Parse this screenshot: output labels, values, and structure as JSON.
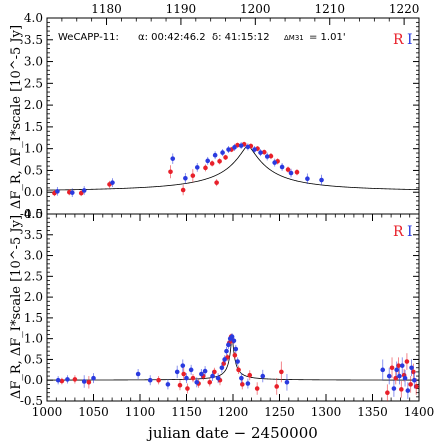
{
  "chart_data": [
    {
      "type": "scatter",
      "panel": "top",
      "xlim": [
        1172,
        1222
      ],
      "ylim": [
        -0.5,
        4.0
      ],
      "x_top_ticks": [
        1180,
        1190,
        1200,
        1210,
        1220
      ],
      "y_ticks": [
        "-0.5",
        "0.0",
        "0.5",
        "1.0",
        "1.5",
        "2.0",
        "2.5",
        "3.0",
        "3.5",
        "4.0"
      ],
      "ylabel": "ΔF_R, ΔF_I*scale [10^-5 Jy]",
      "info": {
        "name": "WeCAPP-11:",
        "alpha": "α: 00:42:46.2",
        "delta": "δ: 41:15:12",
        "dist_label": "ΔM31",
        "dist_value": "= 1.01'"
      },
      "legend": {
        "r": "R",
        "i": "I",
        "position": "top-right"
      },
      "series": [
        {
          "name": "R",
          "color": "#e8202a",
          "points": [
            [
              1173.0,
              -0.02
            ],
            [
              1175.0,
              0.0
            ],
            [
              1176.6,
              -0.02
            ],
            [
              1180.4,
              0.18
            ],
            [
              1188.6,
              0.47
            ],
            [
              1191.6,
              0.38
            ],
            [
              1193.3,
              0.56
            ],
            [
              1194.2,
              0.66
            ],
            [
              1195.2,
              0.71
            ],
            [
              1196.0,
              0.8
            ],
            [
              1196.8,
              0.98
            ],
            [
              1197.6,
              1.08
            ],
            [
              1198.5,
              1.1
            ],
            [
              1199.4,
              1.06
            ],
            [
              1200.3,
              1.0
            ],
            [
              1201.2,
              0.92
            ],
            [
              1202.1,
              0.83
            ],
            [
              1203.0,
              0.71
            ],
            [
              1204.4,
              0.52
            ],
            [
              1205.6,
              0.46
            ],
            [
              1190.3,
              0.05
            ],
            [
              1194.8,
              0.22
            ]
          ],
          "err": [
            0.07,
            0.07,
            0.07,
            0.08,
            0.15,
            0.15,
            0.08,
            0.07,
            0.07,
            0.06,
            0.06,
            0.06,
            0.06,
            0.06,
            0.06,
            0.06,
            0.07,
            0.07,
            0.07,
            0.07,
            0.12,
            0.08
          ]
        },
        {
          "name": "I",
          "color": "#2a3adf",
          "points": [
            [
              1173.4,
              0.02
            ],
            [
              1175.4,
              -0.01
            ],
            [
              1177.0,
              0.04
            ],
            [
              1180.8,
              0.22
            ],
            [
              1188.9,
              0.77
            ],
            [
              1190.6,
              0.32
            ],
            [
              1192.2,
              0.57
            ],
            [
              1193.6,
              0.72
            ],
            [
              1194.6,
              0.85
            ],
            [
              1195.6,
              0.91
            ],
            [
              1196.4,
              0.98
            ],
            [
              1197.2,
              1.03
            ],
            [
              1198.1,
              1.07
            ],
            [
              1199.0,
              1.04
            ],
            [
              1199.9,
              0.98
            ],
            [
              1200.7,
              0.91
            ],
            [
              1201.6,
              0.82
            ],
            [
              1202.6,
              0.68
            ],
            [
              1203.6,
              0.58
            ],
            [
              1204.8,
              0.44
            ],
            [
              1207.0,
              0.31
            ],
            [
              1208.9,
              0.28
            ]
          ],
          "err": [
            0.1,
            0.1,
            0.1,
            0.1,
            0.12,
            0.12,
            0.1,
            0.09,
            0.09,
            0.08,
            0.08,
            0.08,
            0.08,
            0.08,
            0.08,
            0.08,
            0.09,
            0.09,
            0.09,
            0.1,
            0.12,
            0.12
          ]
        }
      ],
      "model": {
        "t0": 1199.0,
        "amp": 1.08,
        "width": 2.8,
        "power": 1.35
      }
    },
    {
      "type": "scatter",
      "panel": "bottom",
      "xlim": [
        1000,
        1400
      ],
      "ylim": [
        -0.5,
        4.0
      ],
      "x_ticks": [
        1000,
        1050,
        1100,
        1150,
        1200,
        1250,
        1300,
        1350,
        1400
      ],
      "y_ticks": [
        "-0.5",
        "0.0",
        "0.5",
        "1.0",
        "1.5",
        "2.0",
        "2.5",
        "3.0",
        "3.5",
        "4.0"
      ],
      "xlabel": "julian date − 2450000",
      "ylabel": "ΔF_R, ΔF_I*scale [10^-5 Jy]",
      "legend": {
        "r": "R",
        "i": "I",
        "position": "top-right"
      },
      "series": [
        {
          "name": "R",
          "color": "#e8202a",
          "points": [
            [
              1016,
              -0.02
            ],
            [
              1030,
              0.02
            ],
            [
              1045,
              -0.05
            ],
            [
              1120,
              0.0
            ],
            [
              1143,
              -0.12
            ],
            [
              1147,
              0.15
            ],
            [
              1151,
              -0.2
            ],
            [
              1157,
              0.05
            ],
            [
              1163,
              -0.08
            ],
            [
              1168,
              0.1
            ],
            [
              1175,
              -0.05
            ],
            [
              1180,
              0.2
            ],
            [
              1186,
              0.0
            ],
            [
              1190,
              0.4
            ],
            [
              1194,
              0.55
            ],
            [
              1196,
              0.9
            ],
            [
              1198,
              1.05
            ],
            [
              1200,
              0.95
            ],
            [
              1202,
              0.6
            ],
            [
              1206,
              0.25
            ],
            [
              1210,
              -0.1
            ],
            [
              1218,
              0.12
            ],
            [
              1226,
              -0.2
            ],
            [
              1247,
              -0.15
            ],
            [
              1252,
              0.2
            ],
            [
              1366,
              -0.3
            ],
            [
              1371,
              0.3
            ],
            [
              1375,
              0.05
            ],
            [
              1378,
              0.35
            ],
            [
              1381,
              -0.22
            ],
            [
              1384,
              0.12
            ],
            [
              1387,
              0.45
            ],
            [
              1391,
              -0.1
            ],
            [
              1394,
              0.2
            ],
            [
              1397,
              -0.15
            ]
          ],
          "err": [
            0.08,
            0.1,
            0.15,
            0.1,
            0.12,
            0.15,
            0.12,
            0.1,
            0.1,
            0.1,
            0.1,
            0.1,
            0.12,
            0.1,
            0.08,
            0.07,
            0.07,
            0.07,
            0.08,
            0.1,
            0.12,
            0.12,
            0.15,
            0.2,
            0.25,
            0.2,
            0.25,
            0.15,
            0.2,
            0.2,
            0.15,
            0.2,
            0.2,
            0.2,
            0.2
          ]
        },
        {
          "name": "I",
          "color": "#2a3adf",
          "points": [
            [
              1012,
              0.0
            ],
            [
              1022,
              0.02
            ],
            [
              1040,
              -0.03
            ],
            [
              1050,
              0.05
            ],
            [
              1098,
              0.15
            ],
            [
              1111,
              0.0
            ],
            [
              1130,
              -0.1
            ],
            [
              1140,
              0.2
            ],
            [
              1146,
              0.35
            ],
            [
              1150,
              0.05
            ],
            [
              1155,
              0.25
            ],
            [
              1161,
              -0.05
            ],
            [
              1166,
              0.15
            ],
            [
              1170,
              0.22
            ],
            [
              1178,
              0.1
            ],
            [
              1184,
              0.05
            ],
            [
              1188,
              0.3
            ],
            [
              1191,
              0.5
            ],
            [
              1193,
              0.7
            ],
            [
              1195,
              0.85
            ],
            [
              1197,
              1.0
            ],
            [
              1199,
              1.05
            ],
            [
              1201,
              0.95
            ],
            [
              1203,
              0.75
            ],
            [
              1205,
              0.45
            ],
            [
              1209,
              0.05
            ],
            [
              1216,
              -0.08
            ],
            [
              1232,
              0.1
            ],
            [
              1258,
              -0.05
            ],
            [
              1361,
              0.25
            ],
            [
              1368,
              0.1
            ],
            [
              1373,
              -0.2
            ],
            [
              1376,
              0.25
            ],
            [
              1379,
              0.1
            ],
            [
              1382,
              0.35
            ],
            [
              1385,
              0.05
            ],
            [
              1388,
              -0.25
            ],
            [
              1392,
              0.3
            ],
            [
              1395,
              0.0
            ]
          ],
          "err": [
            0.1,
            0.1,
            0.15,
            0.12,
            0.12,
            0.12,
            0.12,
            0.15,
            0.15,
            0.12,
            0.12,
            0.12,
            0.12,
            0.12,
            0.12,
            0.12,
            0.12,
            0.1,
            0.1,
            0.1,
            0.08,
            0.08,
            0.08,
            0.1,
            0.1,
            0.12,
            0.12,
            0.15,
            0.2,
            0.25,
            0.2,
            0.2,
            0.2,
            0.2,
            0.2,
            0.2,
            0.2,
            0.2,
            0.2
          ]
        }
      ],
      "model": {
        "t0": 1199.0,
        "amp": 1.08,
        "width": 2.8,
        "power": 1.35
      }
    }
  ]
}
